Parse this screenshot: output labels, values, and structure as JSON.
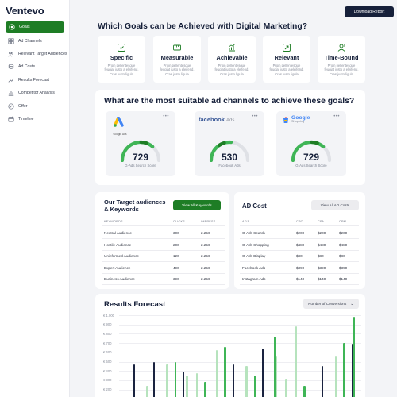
{
  "brand": "Ventevo",
  "download_label": "Download Report",
  "nav": [
    {
      "label": "Goals",
      "icon": "target-icon",
      "active": true
    },
    {
      "label": "Ad Channels",
      "icon": "grid-icon"
    },
    {
      "label": "Relevant Target Audiences",
      "icon": "users-icon"
    },
    {
      "label": "Ad Costs",
      "icon": "coins-icon"
    },
    {
      "label": "Results Forecast",
      "icon": "trend-icon"
    },
    {
      "label": "Competitor Analysis",
      "icon": "chart-icon"
    },
    {
      "label": "Offer",
      "icon": "offer-icon"
    },
    {
      "label": "Timeline",
      "icon": "calendar-icon"
    }
  ],
  "goals": {
    "title": "Which Goals can be Achieved with Digital Marketing?",
    "items": [
      {
        "label": "Specific",
        "desc": "Proin pellentesque feugiat justo a eleifend. Cras justo ligula"
      },
      {
        "label": "Measurable",
        "desc": "Proin pellentesque feugiat justo a eleifend. Cras justo ligula"
      },
      {
        "label": "Achievable",
        "desc": "Proin pellentesque feugiat justo a eleifend. Cras justo ligula"
      },
      {
        "label": "Relevant",
        "desc": "Proin pellentesque feugiat justo a eleifend. Cras justo ligula"
      },
      {
        "label": "Time-Bound",
        "desc": "Proin pellentesque feugiat justo a eleifend. Cras justo ligula"
      }
    ]
  },
  "channels": {
    "title": "What are the most suitable ad channels to achieve these goals?",
    "cards": [
      {
        "logo_text": "Google Ads",
        "value": "729",
        "label": "G-Ads Search Score",
        "fill": 0.73
      },
      {
        "logo_text": "facebook",
        "logo_sub": "Ads",
        "value": "530",
        "label": "Facebook Ads",
        "fill": 0.53
      },
      {
        "logo_text": "Google",
        "logo_sub": "Shopping",
        "value": "729",
        "label": "G-Ads Search Score",
        "fill": 0.73
      }
    ],
    "dots": "•••"
  },
  "audiences": {
    "title_line1": "Our Target audiences",
    "title_line2": "& Keywords",
    "button": "View All Keywords",
    "headers": [
      "KEYWORDS",
      "CLICKS",
      "IMPRESS"
    ],
    "rows": [
      [
        "Neutral Audience",
        "300",
        "2.256"
      ],
      [
        "Hostile Audience",
        "200",
        "2.256"
      ],
      [
        "Uninformed Audience",
        "120",
        "2.256"
      ],
      [
        "Expert Audience",
        "490",
        "2.256"
      ],
      [
        "Business Audience",
        "390",
        "2.256"
      ]
    ]
  },
  "adcost": {
    "title": "AD Cost",
    "button": "View All AD Costs",
    "headers": [
      "AD'S",
      "CPC",
      "CPA",
      "CPM"
    ],
    "rows": [
      [
        "G-Ads Search",
        "$200",
        "$200",
        "$200"
      ],
      [
        "G-Ads Shopping",
        "$480",
        "$480",
        "$480"
      ],
      [
        "G-Ads Display",
        "$80",
        "$80",
        "$80"
      ],
      [
        "Facebook Ads",
        "$390",
        "$390",
        "$390"
      ],
      [
        "Instagram Ads",
        "$140",
        "$140",
        "$140"
      ]
    ]
  },
  "forecast": {
    "title": "Results Forecast",
    "dropdown": "Number of Conversions",
    "chart_data": {
      "type": "bar",
      "y_ticks": [
        "€ 1.000",
        "€ 900",
        "€ 800",
        "€ 700",
        "€ 600",
        "€ 500",
        "€ 400",
        "€ 300",
        "€ 200"
      ],
      "ylim": [
        200,
        1000
      ],
      "colors": {
        "dark": "#1a2340",
        "green": "#3fb556",
        "light": "#b6e3bd"
      },
      "series": [
        {
          "values": [
            0,
            470,
            0,
            500,
            0,
            0,
            390,
            0,
            0,
            0,
            0,
            470,
            0,
            0,
            640,
            0,
            0,
            0,
            0,
            0,
            450,
            0,
            0,
            690
          ]
        },
        {
          "values": [
            0,
            0,
            0,
            0,
            0,
            500,
            0,
            0,
            280,
            0,
            660,
            0,
            0,
            350,
            0,
            770,
            0,
            0,
            240,
            0,
            0,
            0,
            700,
            980
          ]
        },
        {
          "values": [
            0,
            0,
            240,
            0,
            470,
            0,
            350,
            380,
            0,
            620,
            0,
            0,
            450,
            0,
            0,
            560,
            320,
            880,
            0,
            0,
            0,
            560,
            0,
            0
          ]
        }
      ]
    }
  }
}
